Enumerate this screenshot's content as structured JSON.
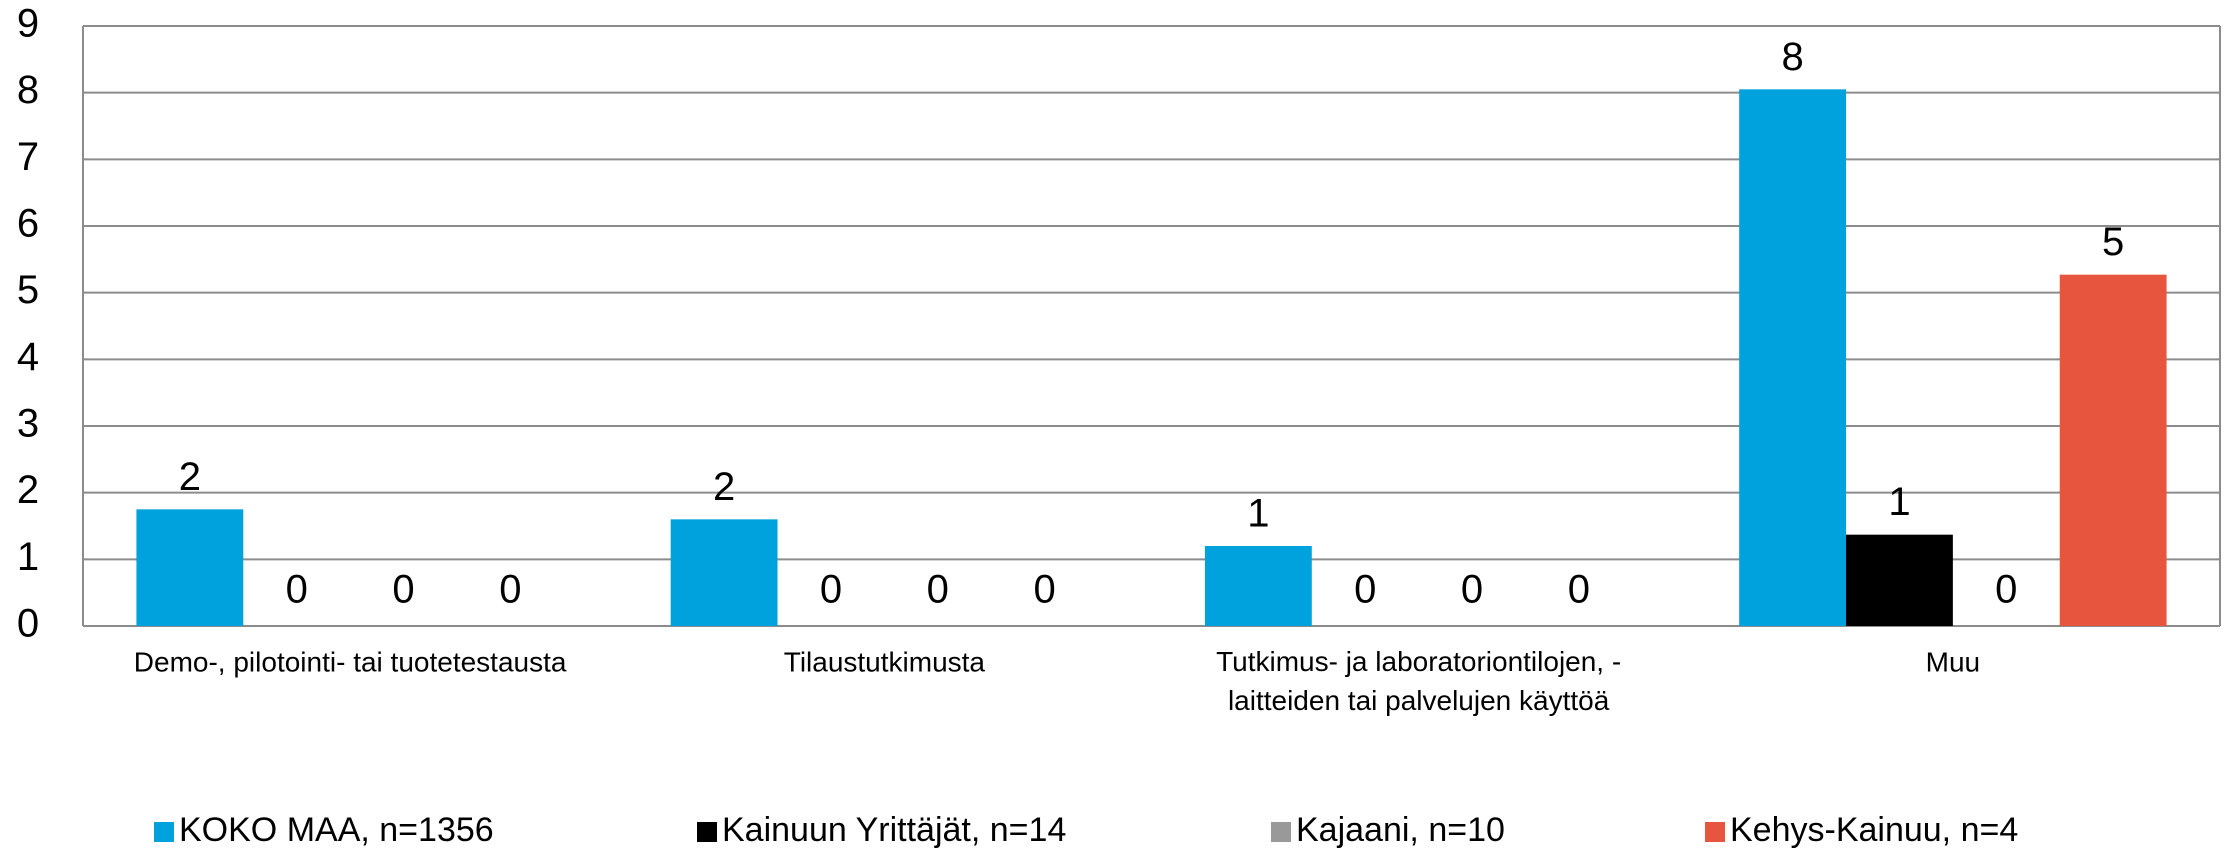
{
  "chart_data": {
    "type": "bar",
    "categories": [
      "Demo-, pilotointi- tai tuotetestausta",
      "Tilaustutkimusta",
      "Tutkimus- ja laboratoriontilojen, -\nlaitteiden tai palvelujen käyttöä",
      "Muu"
    ],
    "series": [
      {
        "name": "KOKO MAA, n=1356",
        "color": "#00a2dd",
        "values": [
          1.75,
          1.6,
          1.2,
          8.05
        ],
        "value_labels": [
          "2",
          "2",
          "1",
          "8"
        ]
      },
      {
        "name": "Kainuun Yrittäjät, n=14",
        "color": "#000000",
        "values": [
          0,
          0,
          0,
          1.37
        ],
        "value_labels": [
          "0",
          "0",
          "0",
          "1"
        ]
      },
      {
        "name": "Kajaani, n=10",
        "color": "#999999",
        "values": [
          0,
          0,
          0,
          0
        ],
        "value_labels": [
          "0",
          "0",
          "0",
          "0"
        ]
      },
      {
        "name": "Kehys-Kainuu, n=4",
        "color": "#e8553e",
        "values": [
          0,
          0,
          0,
          5.27
        ],
        "value_labels": [
          "0",
          "0",
          "0",
          "5"
        ]
      }
    ],
    "ylim": [
      0,
      9
    ],
    "yticks": [
      0,
      1,
      2,
      3,
      4,
      5,
      6,
      7,
      8,
      9
    ],
    "grid": true,
    "legend": "bottom"
  }
}
